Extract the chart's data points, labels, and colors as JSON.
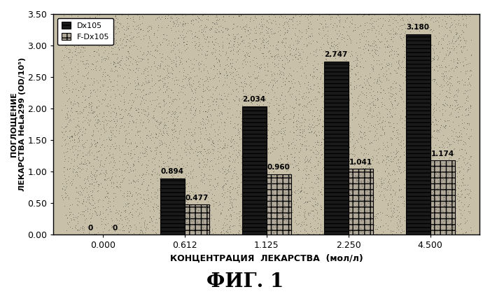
{
  "categories": [
    "0.000",
    "0.612",
    "1.125",
    "2.250",
    "4.500"
  ],
  "dx105_values": [
    0.0,
    0.894,
    2.034,
    2.747,
    3.18
  ],
  "fdx105_values": [
    0.0,
    0.477,
    0.96,
    1.041,
    1.174
  ],
  "dx105_labels": [
    "0",
    "0.894",
    "2.034",
    "2.747",
    "3.180"
  ],
  "fdx105_labels": [
    "0",
    "0.477",
    "0.960",
    "1.041",
    "1.174"
  ],
  "title": "ФИГ. 1",
  "xlabel": "КОНЦЕНТРАЦИЯ  ЛЕКАРСТВА  (мол/л)",
  "ylabel": "ПОГЛОЩЕНИЕ\nЛЕКАРСТВА HeLa299 (OD/10⁵)",
  "ylim": [
    0.0,
    3.5
  ],
  "yticks": [
    0.0,
    0.5,
    1.0,
    1.5,
    2.0,
    2.5,
    3.0,
    3.5
  ],
  "legend_dx105": "Dx105",
  "legend_fdx105": "F-Dx105",
  "bar_width": 0.3,
  "background_color": "#c8c0a8",
  "dx105_color": "#1a1a1a",
  "fdx105_color": "#b0a898",
  "noise_density": 0.45,
  "noise_color": "#000000"
}
